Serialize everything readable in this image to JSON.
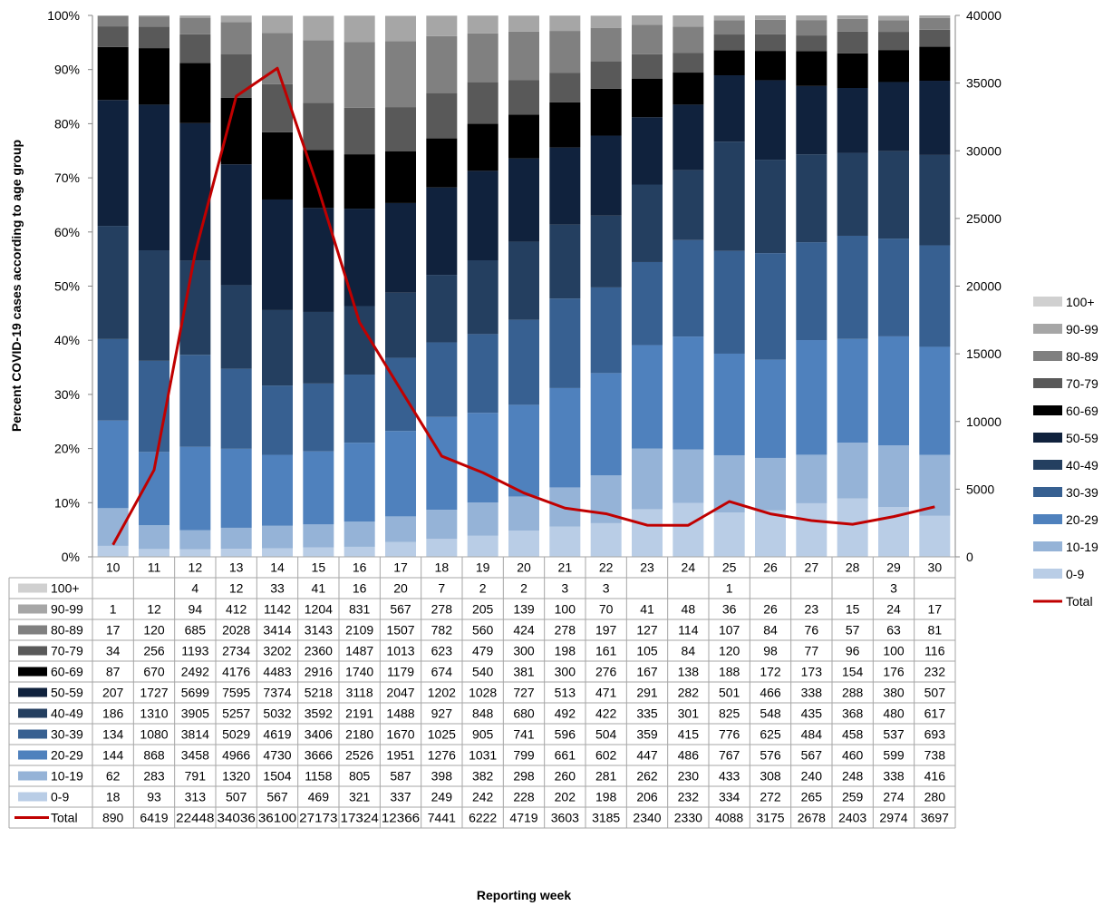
{
  "chart_data": {
    "type": "bar",
    "stacked": "percent",
    "secondary_line": true,
    "ylabel": "Percent COVID-19 cases according to age group",
    "xlabel": "Reporting week",
    "y_left_ticks": [
      "0%",
      "10%",
      "20%",
      "30%",
      "40%",
      "50%",
      "60%",
      "70%",
      "80%",
      "90%",
      "100%"
    ],
    "y_right_ticks": [
      "0",
      "5000",
      "10000",
      "15000",
      "20000",
      "25000",
      "30000",
      "35000",
      "40000"
    ],
    "y_left_range": [
      0,
      100
    ],
    "y_right_range": [
      0,
      40000
    ],
    "grid": false,
    "legend_position": "right",
    "categories": [
      "10",
      "11",
      "12",
      "13",
      "14",
      "15",
      "16",
      "17",
      "18",
      "19",
      "20",
      "21",
      "22",
      "23",
      "24",
      "25",
      "26",
      "27",
      "28",
      "29",
      "30"
    ],
    "series": [
      {
        "name": "0-9",
        "color": "#b9cde6",
        "values": [
          18,
          93,
          313,
          507,
          567,
          469,
          321,
          337,
          249,
          242,
          228,
          202,
          198,
          206,
          232,
          334,
          272,
          265,
          259,
          274,
          280
        ]
      },
      {
        "name": "10-19",
        "color": "#95b3d7",
        "values": [
          62,
          283,
          791,
          1320,
          1504,
          1158,
          805,
          587,
          398,
          382,
          298,
          260,
          281,
          262,
          230,
          433,
          308,
          240,
          248,
          338,
          416
        ]
      },
      {
        "name": "20-29",
        "color": "#4f81bd",
        "values": [
          144,
          868,
          3458,
          4966,
          4730,
          3666,
          2526,
          1951,
          1276,
          1031,
          799,
          661,
          602,
          447,
          486,
          767,
          576,
          567,
          460,
          599,
          738
        ]
      },
      {
        "name": "30-39",
        "color": "#376091",
        "values": [
          134,
          1080,
          3814,
          5029,
          4619,
          3406,
          2180,
          1670,
          1025,
          905,
          741,
          596,
          504,
          359,
          415,
          776,
          625,
          484,
          458,
          537,
          693
        ]
      },
      {
        "name": "40-49",
        "color": "#243f60",
        "values": [
          186,
          1310,
          3905,
          5257,
          5032,
          3592,
          2191,
          1488,
          927,
          848,
          680,
          492,
          422,
          335,
          301,
          825,
          548,
          435,
          368,
          480,
          617
        ]
      },
      {
        "name": "50-59",
        "color": "#10223d",
        "values": [
          207,
          1727,
          5699,
          7595,
          7374,
          5218,
          3118,
          2047,
          1202,
          1028,
          727,
          513,
          471,
          291,
          282,
          501,
          466,
          338,
          288,
          380,
          507
        ]
      },
      {
        "name": "60-69",
        "color": "#000000",
        "values": [
          87,
          670,
          2492,
          4176,
          4483,
          2916,
          1740,
          1179,
          674,
          540,
          381,
          300,
          276,
          167,
          138,
          188,
          172,
          173,
          154,
          176,
          232
        ]
      },
      {
        "name": "70-79",
        "color": "#595959",
        "values": [
          34,
          256,
          1193,
          2734,
          3202,
          2360,
          1487,
          1013,
          623,
          479,
          300,
          198,
          161,
          105,
          84,
          120,
          98,
          77,
          96,
          100,
          116
        ]
      },
      {
        "name": "80-89",
        "color": "#808080",
        "values": [
          17,
          120,
          685,
          2028,
          3414,
          3143,
          2109,
          1507,
          782,
          560,
          424,
          278,
          197,
          127,
          114,
          107,
          84,
          76,
          57,
          63,
          81
        ]
      },
      {
        "name": "90-99",
        "color": "#a6a6a6",
        "values": [
          1,
          12,
          94,
          412,
          1142,
          1204,
          831,
          567,
          278,
          205,
          139,
          100,
          70,
          41,
          48,
          36,
          26,
          23,
          15,
          24,
          17
        ]
      },
      {
        "name": "100+",
        "color": "#d0d0d0",
        "values": [
          null,
          null,
          4,
          12,
          33,
          41,
          16,
          20,
          7,
          2,
          2,
          3,
          3,
          null,
          null,
          1,
          null,
          null,
          null,
          3,
          null
        ]
      }
    ],
    "line": {
      "name": "Total",
      "color": "#c00000",
      "values": [
        890,
        6419,
        22448,
        34036,
        36100,
        27173,
        17324,
        12366,
        7441,
        6222,
        4719,
        3603,
        3185,
        2340,
        2330,
        4088,
        3175,
        2678,
        2403,
        2974,
        3697
      ]
    }
  }
}
